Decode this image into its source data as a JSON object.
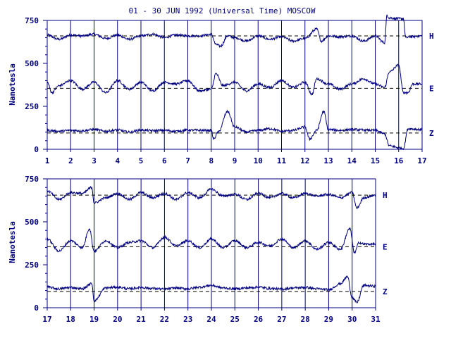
{
  "chart_data": [
    {
      "type": "line",
      "title": "01 - 30 JUN 1992 (Universal Time) MOSCOW",
      "ylabel": "Nanotesla",
      "xlim": [
        1,
        17
      ],
      "ylim": [
        0,
        750
      ],
      "x_ticks": [
        "1",
        "2",
        "3",
        "4",
        "5",
        "6",
        "7",
        "8",
        "9",
        "10",
        "11",
        "12",
        "13",
        "14",
        "15",
        "16",
        "17"
      ],
      "y_ticks": [
        "0",
        "250",
        "500",
        "750"
      ],
      "grid": "vertical lines at each day",
      "series": [
        {
          "name": "H",
          "baseline": 660,
          "x": [
            1,
            1.5,
            2,
            2.5,
            3,
            3.5,
            4,
            4.5,
            5,
            5.5,
            6,
            6.5,
            7,
            7.5,
            8,
            8.2,
            8.4,
            8.7,
            9,
            9.5,
            10,
            10.5,
            11,
            11.5,
            12,
            12.5,
            12.7,
            13,
            13.5,
            14,
            14.5,
            15,
            15.4,
            15.5,
            15.6,
            16,
            16.2,
            16.3,
            16.5,
            17
          ],
          "y": [
            665,
            640,
            665,
            660,
            670,
            645,
            665,
            640,
            660,
            670,
            650,
            665,
            660,
            660,
            670,
            610,
            600,
            660,
            650,
            630,
            660,
            640,
            655,
            630,
            645,
            700,
            630,
            660,
            655,
            660,
            630,
            660,
            620,
            780,
            765,
            760,
            760,
            650,
            655,
            660
          ]
        },
        {
          "name": "E",
          "baseline": 355,
          "x": [
            1,
            1.2,
            1.5,
            2,
            2.5,
            3,
            3.5,
            4,
            4.5,
            5,
            5.5,
            6,
            6.5,
            7,
            7.5,
            8,
            8.2,
            8.5,
            9,
            9.5,
            10,
            10.5,
            11,
            11.5,
            12,
            12.3,
            12.5,
            13,
            13.5,
            14,
            14.5,
            15,
            15.4,
            15.6,
            16,
            16.2,
            16.4,
            16.6,
            17
          ],
          "y": [
            390,
            330,
            370,
            400,
            350,
            390,
            330,
            400,
            350,
            390,
            340,
            390,
            380,
            400,
            340,
            350,
            440,
            370,
            390,
            340,
            380,
            360,
            400,
            360,
            390,
            320,
            410,
            380,
            350,
            380,
            410,
            380,
            360,
            450,
            490,
            330,
            330,
            380,
            380
          ]
        },
        {
          "name": "Z",
          "baseline": 95,
          "x": [
            1,
            1.5,
            2,
            2.5,
            3,
            3.5,
            4,
            4.5,
            5,
            5.5,
            6,
            6.5,
            7,
            7.5,
            8,
            8.1,
            8.3,
            8.7,
            9,
            9.5,
            10,
            10.5,
            11,
            11.5,
            12,
            12.2,
            12.5,
            12.8,
            13,
            13.5,
            14,
            14.5,
            15,
            15.4,
            15.6,
            16,
            16.2,
            16.4,
            17
          ],
          "y": [
            110,
            105,
            110,
            108,
            115,
            105,
            112,
            100,
            112,
            108,
            110,
            105,
            112,
            110,
            110,
            60,
            100,
            220,
            130,
            100,
            110,
            120,
            105,
            110,
            130,
            60,
            110,
            220,
            115,
            110,
            115,
            112,
            110,
            90,
            20,
            10,
            5,
            120,
            115
          ]
        }
      ]
    },
    {
      "type": "line",
      "title": "",
      "ylabel": "Nanotesla",
      "xlim": [
        17,
        31
      ],
      "ylim": [
        0,
        750
      ],
      "x_ticks": [
        "17",
        "18",
        "19",
        "20",
        "21",
        "22",
        "23",
        "24",
        "25",
        "26",
        "27",
        "28",
        "29",
        "30",
        "31"
      ],
      "y_ticks": [
        "0",
        "250",
        "500",
        "750"
      ],
      "grid": "vertical lines at each day",
      "series": [
        {
          "name": "H",
          "baseline": 655,
          "x": [
            17,
            17.5,
            18,
            18.5,
            18.9,
            19,
            19.5,
            20,
            20.5,
            21,
            21.5,
            22,
            22.5,
            23,
            23.5,
            24,
            24.5,
            25,
            25.5,
            26,
            26.5,
            27,
            27.5,
            28,
            28.5,
            29,
            29.5,
            30,
            30.2,
            30.5,
            31
          ],
          "y": [
            680,
            630,
            670,
            665,
            700,
            610,
            640,
            665,
            630,
            670,
            640,
            665,
            630,
            670,
            640,
            690,
            650,
            660,
            630,
            665,
            640,
            665,
            640,
            665,
            650,
            660,
            640,
            670,
            580,
            640,
            655
          ]
        },
        {
          "name": "E",
          "baseline": 355,
          "x": [
            17,
            17.5,
            18,
            18.5,
            18.8,
            19,
            19.5,
            20,
            20.5,
            21,
            21.5,
            22,
            22.5,
            23,
            23.5,
            24,
            24.5,
            25,
            25.5,
            26,
            26.5,
            27,
            27.5,
            28,
            28.5,
            29,
            29.5,
            29.9,
            30.1,
            30.3,
            30.5,
            31
          ],
          "y": [
            400,
            330,
            390,
            350,
            460,
            330,
            390,
            350,
            380,
            390,
            350,
            410,
            360,
            390,
            350,
            400,
            350,
            390,
            350,
            380,
            360,
            400,
            350,
            390,
            340,
            380,
            340,
            460,
            320,
            380,
            370,
            370
          ]
        },
        {
          "name": "Z",
          "baseline": 95,
          "x": [
            17,
            17.5,
            18,
            18.5,
            18.9,
            19,
            19.5,
            20,
            20.5,
            21,
            21.5,
            22,
            22.5,
            23,
            23.5,
            24,
            24.5,
            25,
            25.5,
            26,
            26.5,
            27,
            27.5,
            28,
            28.5,
            29,
            29.5,
            29.8,
            30,
            30.2,
            30.5,
            31
          ],
          "y": [
            120,
            110,
            118,
            110,
            140,
            40,
            115,
            120,
            110,
            118,
            112,
            108,
            115,
            110,
            120,
            130,
            115,
            110,
            115,
            120,
            112,
            108,
            115,
            118,
            110,
            105,
            140,
            180,
            60,
            30,
            130,
            125
          ]
        }
      ]
    }
  ],
  "labels": {
    "title": "01 - 30 JUN 1992 (Universal Time) MOSCOW",
    "ylabel_top": "Nanotesla",
    "ylabel_bottom": "Nanotesla"
  },
  "colors": {
    "ink": "#000080"
  }
}
